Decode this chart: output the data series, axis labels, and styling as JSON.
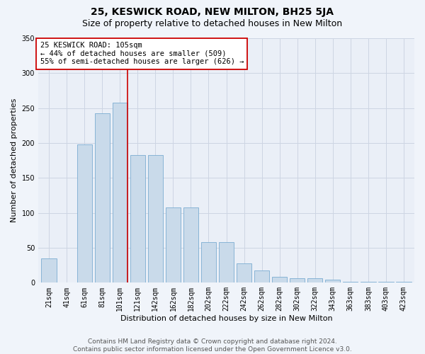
{
  "title": "25, KESWICK ROAD, NEW MILTON, BH25 5JA",
  "subtitle": "Size of property relative to detached houses in New Milton",
  "xlabel": "Distribution of detached houses by size in New Milton",
  "ylabel": "Number of detached properties",
  "categories": [
    "21sqm",
    "41sqm",
    "61sqm",
    "81sqm",
    "101sqm",
    "121sqm",
    "142sqm",
    "162sqm",
    "182sqm",
    "202sqm",
    "222sqm",
    "242sqm",
    "262sqm",
    "282sqm",
    "302sqm",
    "322sqm",
    "343sqm",
    "363sqm",
    "383sqm",
    "403sqm",
    "423sqm"
  ],
  "values": [
    35,
    0,
    198,
    243,
    258,
    183,
    183,
    108,
    108,
    58,
    58,
    28,
    18,
    8,
    6,
    6,
    4,
    1,
    1,
    1,
    1
  ],
  "bar_color": "#c9daea",
  "bar_edge_color": "#7badd1",
  "red_line_x": 4.43,
  "red_line_color": "#cc0000",
  "annotation_text": "25 KESWICK ROAD: 105sqm\n← 44% of detached houses are smaller (509)\n55% of semi-detached houses are larger (626) →",
  "annotation_box_color": "#ffffff",
  "annotation_box_edge_color": "#cc0000",
  "ylim": [
    0,
    350
  ],
  "yticks": [
    0,
    50,
    100,
    150,
    200,
    250,
    300,
    350
  ],
  "grid_color": "#cdd5e3",
  "bg_color": "#eaeff7",
  "fig_bg_color": "#f0f4fa",
  "footer_line1": "Contains HM Land Registry data © Crown copyright and database right 2024.",
  "footer_line2": "Contains public sector information licensed under the Open Government Licence v3.0.",
  "title_fontsize": 10,
  "subtitle_fontsize": 9,
  "xlabel_fontsize": 8,
  "ylabel_fontsize": 8,
  "tick_fontsize": 7,
  "annotation_fontsize": 7.5,
  "footer_fontsize": 6.5
}
